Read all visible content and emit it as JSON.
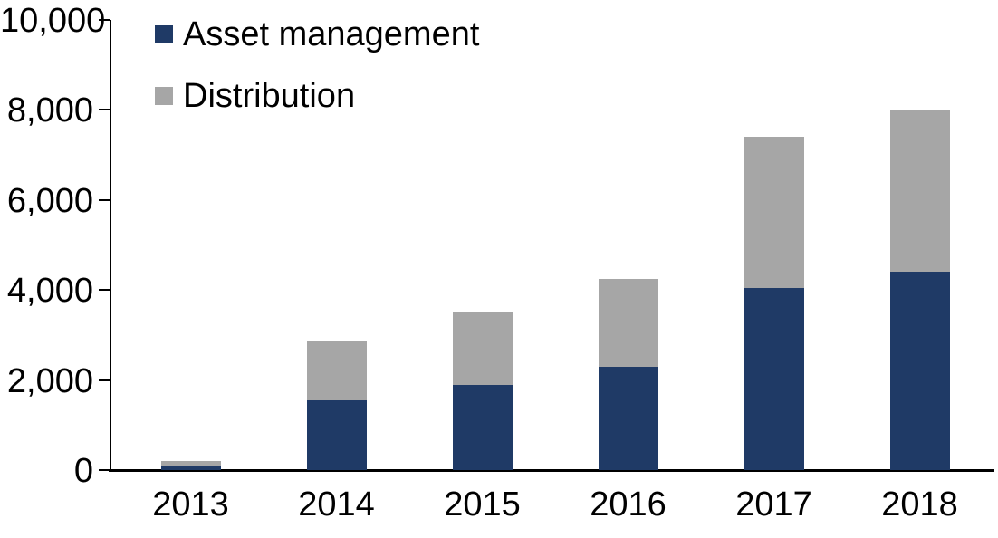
{
  "chart_data": {
    "type": "bar",
    "stacked": true,
    "title": "",
    "xlabel": "",
    "ylabel": "",
    "categories": [
      "2013",
      "2014",
      "2015",
      "2016",
      "2017",
      "2018"
    ],
    "series": [
      {
        "name": "Asset management",
        "color": "#1f3a66",
        "values": [
          100,
          1550,
          1900,
          2300,
          4050,
          4400
        ]
      },
      {
        "name": "Distribution",
        "color": "#a6a6a6",
        "values": [
          100,
          1310,
          1600,
          1950,
          3350,
          3600
        ]
      }
    ],
    "totals": [
      200,
      2860,
      3500,
      4250,
      7400,
      8000
    ],
    "ylim": [
      0,
      10000
    ],
    "yticks": [
      0,
      2000,
      4000,
      6000,
      8000,
      10000
    ],
    "ytick_labels": [
      "0",
      "2,000",
      "4,000",
      "6,000",
      "8,000",
      "10,000"
    ],
    "legend_position": "top-left",
    "grid": false,
    "axis_color": "#000000",
    "background_color": "#ffffff"
  }
}
